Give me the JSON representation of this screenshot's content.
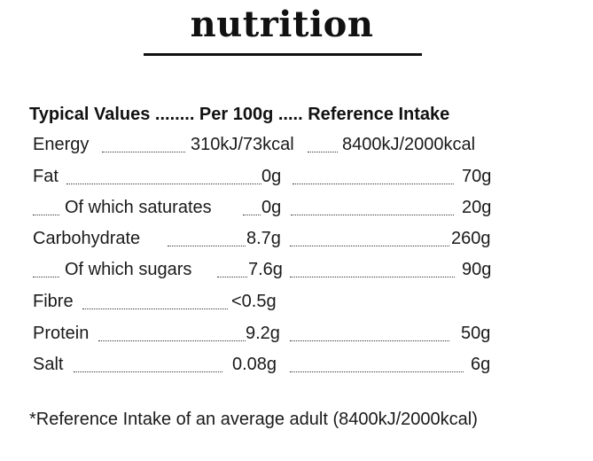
{
  "title": "nutrition",
  "header": "Typical Values ........ Per 100g ..... Reference Intake",
  "rows": [
    {
      "label": "Energy",
      "per100g": "310kJ/73kcal",
      "ri": "8400kJ/2000kcal"
    },
    {
      "label": "Fat",
      "per100g": "0g",
      "ri": "70g"
    },
    {
      "label": "Of which saturates",
      "per100g": "0g",
      "ri": "20g"
    },
    {
      "label": "Carbohydrate",
      "per100g": "8.7g",
      "ri": "260g"
    },
    {
      "label": "Of which sugars",
      "per100g": "7.6g",
      "ri": "90g"
    },
    {
      "label": "Fibre",
      "per100g": "<0.5g",
      "ri": ""
    },
    {
      "label": "Protein",
      "per100g": "9.2g",
      "ri": "50g"
    },
    {
      "label": "Salt",
      "per100g": "0.08g",
      "ri": "6g"
    }
  ],
  "footnote": "*Reference Intake of an average adult (8400kJ/2000kcal)"
}
